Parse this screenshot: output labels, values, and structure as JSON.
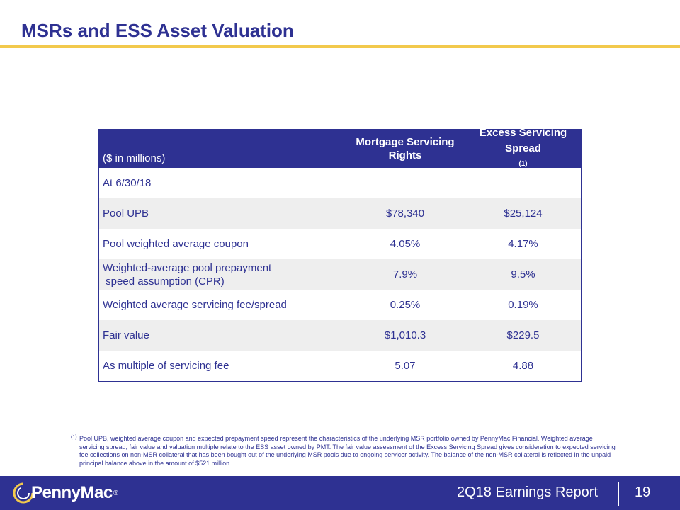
{
  "title": "MSRs and ESS Asset Valuation",
  "colors": {
    "brand_navy": "#2e3192",
    "accent_gold": "#f2c94c",
    "row_shade": "#eeeeee"
  },
  "table": {
    "unit_label": "($ in millions)",
    "col_msr": "Mortgage Servicing Rights",
    "col_ess": "Excess Servicing Spread",
    "col_ess_note": "(1)",
    "rows": [
      {
        "label": "At 6/30/18",
        "msr": "",
        "ess": ""
      },
      {
        "label": "Pool UPB",
        "msr": "$78,340",
        "ess": "$25,124"
      },
      {
        "label": "Pool weighted average coupon",
        "msr": "4.05%",
        "ess": "4.17%"
      },
      {
        "label_line1": "Weighted-average pool prepayment",
        "label_line2": " speed assumption (CPR)",
        "msr": "7.9%",
        "ess": "9.5%"
      },
      {
        "label": "Weighted average servicing fee/spread",
        "msr": "0.25%",
        "ess": "0.19%"
      },
      {
        "label": "Fair value",
        "msr": "$1,010.3",
        "ess": "$229.5"
      },
      {
        "label": "As multiple of servicing fee",
        "msr": "5.07",
        "ess": "4.88"
      }
    ]
  },
  "footnote": {
    "marker": "(1)",
    "text": "Pool UPB,  weighted average coupon and expected prepayment speed represent the characteristics of the underlying MSR portfolio owned by PennyMac Financial.  Weighted average servicing spread, fair value and valuation multiple  relate to the ESS  asset owned by PMT.  The fair value assessment of the Excess Servicing Spread gives consideration to expected servicing fee collections on non-MSR collateral that has been bought out of the underlying MSR pools due to ongoing servicer activity.  The balance of the non-MSR collateral is reflected in the unpaid principal balance above in the amount of $521 million."
  },
  "footer": {
    "logo_text": "PennyMac",
    "logo_reg": "®",
    "report_label": "2Q18 Earnings Report",
    "page_number": "19"
  }
}
